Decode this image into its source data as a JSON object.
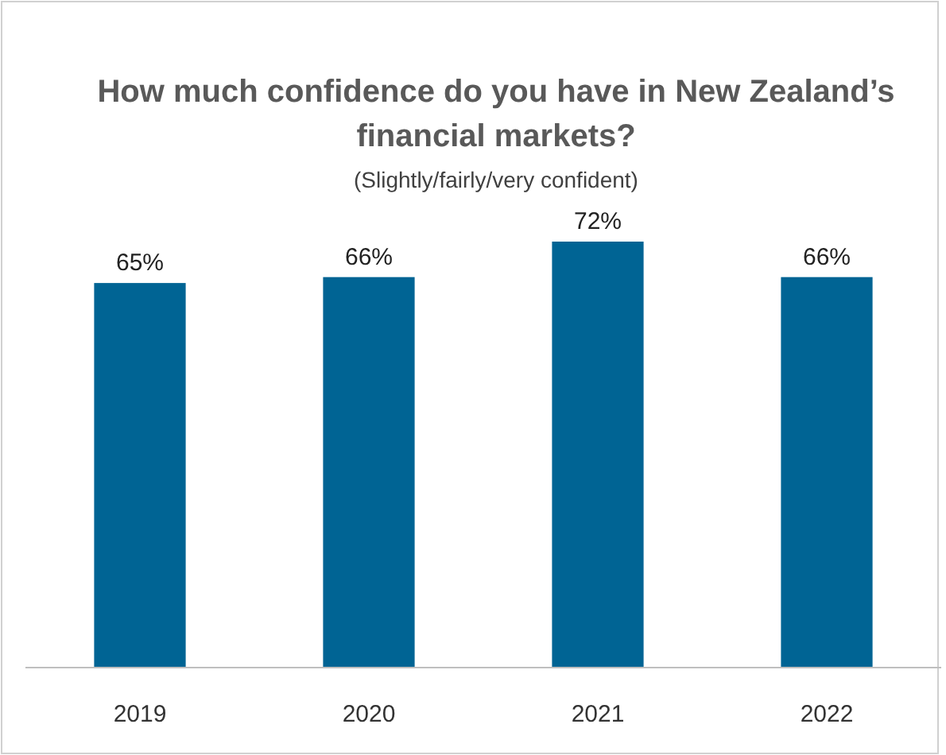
{
  "chart_data": {
    "type": "bar",
    "title": "How much confidence do you have in New Zealand’s financial markets?",
    "subtitle": "(Slightly/fairly/very confident)",
    "categories": [
      "2019",
      "2020",
      "2021",
      "2022"
    ],
    "values": [
      65,
      66,
      72,
      66
    ],
    "color": "#006494",
    "value_labels": [
      "65%",
      "66%",
      "72%",
      "66%"
    ]
  }
}
